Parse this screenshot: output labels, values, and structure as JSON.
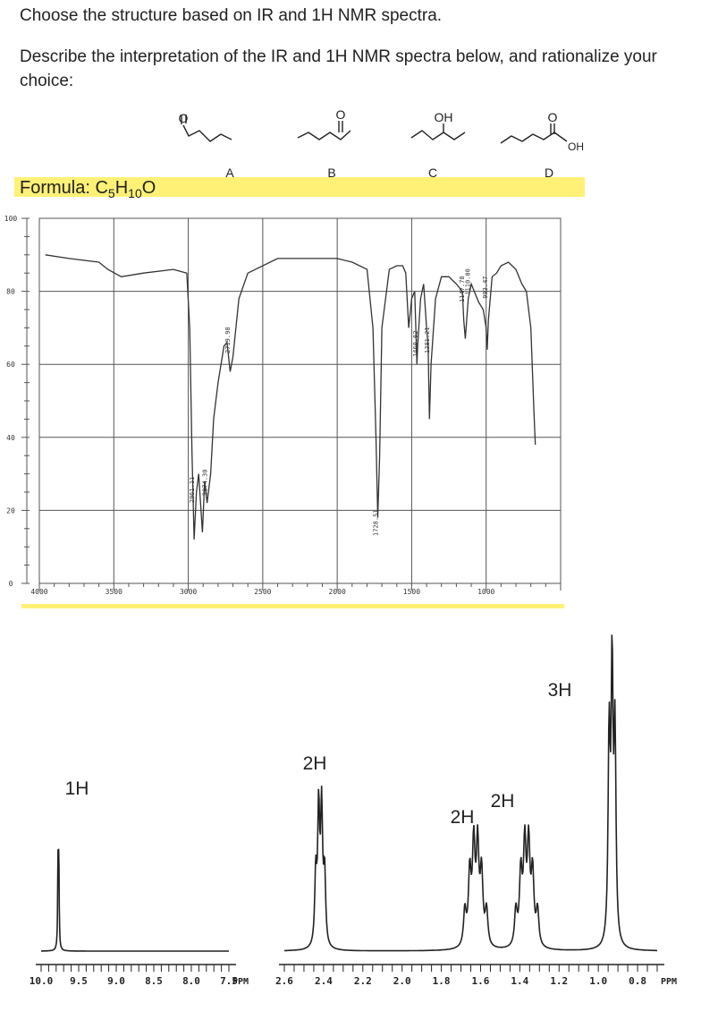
{
  "question": {
    "title": "Choose the structure based on IR and 1H NMR spectra.",
    "body": "Describe the interpretation of the IR and 1H NMR spectra below, and rationalize your choice:"
  },
  "structures": [
    {
      "label": "A",
      "oxygen_label": "O"
    },
    {
      "label": "B",
      "oxygen_label": "O"
    },
    {
      "label": "C",
      "oxygen_label": "OH"
    },
    {
      "label": "D",
      "oxygen_label": "O",
      "hydroxyl_label": "OH"
    }
  ],
  "formula": {
    "prefix": "Formula: C",
    "c": "5",
    "h": "H",
    "hnum": "10",
    "o": "O"
  },
  "colors": {
    "highlight": "#fff176",
    "ink": "#222222"
  },
  "chart_data": [
    {
      "type": "line",
      "xlim": [
        4000,
        500
      ],
      "ylim": [
        0,
        100
      ],
      "x_ticks": [
        "4000",
        "3500",
        "3000",
        "2500",
        "2000",
        "1500",
        "1000"
      ],
      "y_ticks": [
        "100",
        "80",
        "60",
        "40",
        "20",
        "0"
      ],
      "grid": true,
      "series": [
        {
          "x": [
            3960,
            3800,
            3600,
            3540,
            3450,
            3300,
            3100,
            3010,
            2990,
            2975,
            2961,
            2945,
            2930,
            2905,
            2890,
            2874,
            2850,
            2830,
            2800,
            2760,
            2740,
            2719,
            2700,
            2660,
            2600,
            2400,
            2200,
            2000,
            1900,
            1800,
            1760,
            1740,
            1728,
            1715,
            1700,
            1650,
            1600,
            1560,
            1540,
            1520,
            1500,
            1480,
            1465,
            1460,
            1440,
            1420,
            1400,
            1390,
            1381,
            1370,
            1340,
            1300,
            1250,
            1200,
            1160,
            1150,
            1140,
            1120,
            1100,
            1080,
            1050,
            1020,
            1000,
            993,
            985,
            960,
            930,
            900,
            850,
            800,
            760,
            730,
            700,
            680,
            670
          ],
          "y": [
            90,
            89,
            88,
            86,
            84,
            85,
            86,
            85,
            70,
            36,
            12,
            25,
            30,
            14,
            28,
            22,
            30,
            45,
            55,
            65,
            66,
            58,
            62,
            78,
            85,
            89,
            89,
            89,
            88,
            86,
            70,
            40,
            18,
            35,
            70,
            86,
            87,
            87,
            85,
            70,
            78,
            80,
            60,
            65,
            78,
            82,
            70,
            65,
            45,
            60,
            78,
            84,
            84,
            82,
            80,
            72,
            67,
            78,
            82,
            80,
            77,
            75,
            70,
            64,
            72,
            84,
            85,
            87,
            88,
            86,
            82,
            80,
            70,
            48,
            38
          ]
        }
      ],
      "annotations": [
        "2961.11",
        "2874.30",
        "2719.98",
        "1728.51",
        "1460.62",
        "1381.21",
        "1147.78",
        "1110.00",
        "993.47"
      ]
    },
    {
      "type": "line",
      "xlim": [
        10.0,
        7.5
      ],
      "x_ticks": [
        "10.0",
        "9.5",
        "9.0",
        "8.5",
        "8.0",
        "7.5"
      ],
      "x_unit": "PPM",
      "peaks": [
        {
          "shift": 9.77,
          "integration": "1H"
        }
      ]
    },
    {
      "type": "line",
      "xlim": [
        2.6,
        0.7
      ],
      "x_ticks": [
        "2.6",
        "2.4",
        "2.2",
        "2.0",
        "1.8",
        "1.6",
        "1.4",
        "1.2",
        "1.0",
        "0.8"
      ],
      "x_unit": "PPM",
      "peaks": [
        {
          "shift": 2.42,
          "integration": "2H"
        },
        {
          "shift": 1.62,
          "integration": "2H"
        },
        {
          "shift": 1.36,
          "integration": "2H"
        },
        {
          "shift": 0.93,
          "integration": "3H"
        }
      ]
    }
  ]
}
